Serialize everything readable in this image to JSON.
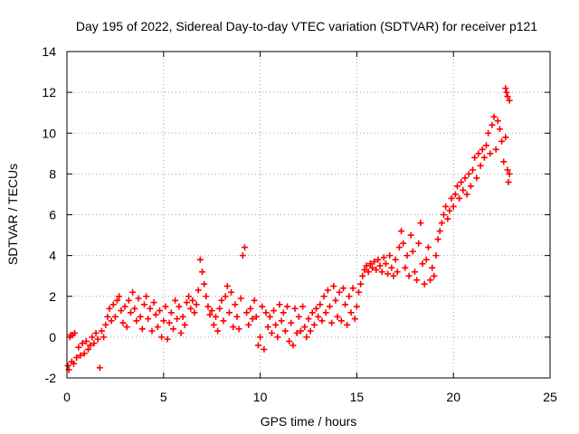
{
  "chart_data": {
    "type": "scatter",
    "title": "Day 195 of 2022, Sidereal Day-to-day VTEC variation (SDTVAR) for receiver p121",
    "xlabel": "GPS time / hours",
    "ylabel": "SDTVAR / TECUs",
    "xlim": [
      0,
      25
    ],
    "ylim": [
      -2,
      14
    ],
    "xticks": [
      0,
      5,
      10,
      15,
      20,
      25
    ],
    "yticks": [
      -2,
      0,
      2,
      4,
      6,
      8,
      10,
      12,
      14
    ],
    "grid": true,
    "marker": "+",
    "color": "#ff0000",
    "series": [
      {
        "name": "SDTVAR",
        "points": [
          [
            0.05,
            -1.4
          ],
          [
            0.1,
            -1.6
          ],
          [
            0.15,
            0.0
          ],
          [
            0.2,
            0.1
          ],
          [
            0.25,
            -1.2
          ],
          [
            0.3,
            0.1
          ],
          [
            0.35,
            -1.3
          ],
          [
            0.4,
            0.2
          ],
          [
            0.5,
            -1.0
          ],
          [
            0.6,
            -0.5
          ],
          [
            0.7,
            -0.9
          ],
          [
            0.8,
            -0.3
          ],
          [
            0.9,
            -0.8
          ],
          [
            1.0,
            -0.2
          ],
          [
            1.1,
            -0.6
          ],
          [
            1.2,
            -0.4
          ],
          [
            1.3,
            0.0
          ],
          [
            1.4,
            -0.3
          ],
          [
            1.5,
            0.2
          ],
          [
            1.6,
            -0.1
          ],
          [
            1.7,
            -1.5
          ],
          [
            1.8,
            0.3
          ],
          [
            1.9,
            0.0
          ],
          [
            2.0,
            0.6
          ],
          [
            2.1,
            1.0
          ],
          [
            2.2,
            1.4
          ],
          [
            2.3,
            0.8
          ],
          [
            2.4,
            1.6
          ],
          [
            2.5,
            1.0
          ],
          [
            2.6,
            1.8
          ],
          [
            2.7,
            2.0
          ],
          [
            2.8,
            1.3
          ],
          [
            2.9,
            0.7
          ],
          [
            3.0,
            1.5
          ],
          [
            3.1,
            0.5
          ],
          [
            3.2,
            1.8
          ],
          [
            3.3,
            1.2
          ],
          [
            3.4,
            2.2
          ],
          [
            3.5,
            1.4
          ],
          [
            3.6,
            0.8
          ],
          [
            3.7,
            1.9
          ],
          [
            3.8,
            1.0
          ],
          [
            3.9,
            0.4
          ],
          [
            4.0,
            1.6
          ],
          [
            4.1,
            2.0
          ],
          [
            4.2,
            0.9
          ],
          [
            4.3,
            1.4
          ],
          [
            4.4,
            0.3
          ],
          [
            4.5,
            1.7
          ],
          [
            4.6,
            1.1
          ],
          [
            4.7,
            0.5
          ],
          [
            4.8,
            1.3
          ],
          [
            4.9,
            0.0
          ],
          [
            5.0,
            0.8
          ],
          [
            5.1,
            1.5
          ],
          [
            5.2,
            -0.1
          ],
          [
            5.3,
            0.7
          ],
          [
            5.4,
            1.2
          ],
          [
            5.5,
            0.4
          ],
          [
            5.6,
            1.8
          ],
          [
            5.7,
            0.9
          ],
          [
            5.8,
            1.5
          ],
          [
            5.9,
            0.2
          ],
          [
            6.0,
            1.0
          ],
          [
            6.1,
            0.6
          ],
          [
            6.2,
            1.7
          ],
          [
            6.3,
            2.0
          ],
          [
            6.4,
            1.4
          ],
          [
            6.5,
            1.8
          ],
          [
            6.6,
            1.2
          ],
          [
            6.7,
            1.6
          ],
          [
            6.8,
            2.3
          ],
          [
            6.9,
            3.8
          ],
          [
            7.0,
            3.2
          ],
          [
            7.1,
            2.6
          ],
          [
            7.2,
            2.0
          ],
          [
            7.3,
            1.5
          ],
          [
            7.4,
            1.1
          ],
          [
            7.5,
            1.3
          ],
          [
            7.6,
            0.6
          ],
          [
            7.7,
            1.0
          ],
          [
            7.8,
            0.3
          ],
          [
            7.9,
            1.4
          ],
          [
            8.0,
            1.8
          ],
          [
            8.1,
            0.8
          ],
          [
            8.2,
            2.0
          ],
          [
            8.3,
            2.5
          ],
          [
            8.4,
            1.2
          ],
          [
            8.5,
            2.2
          ],
          [
            8.6,
            0.5
          ],
          [
            8.7,
            1.6
          ],
          [
            8.8,
            1.0
          ],
          [
            8.9,
            0.4
          ],
          [
            9.0,
            1.9
          ],
          [
            9.1,
            4.0
          ],
          [
            9.2,
            4.4
          ],
          [
            9.3,
            1.2
          ],
          [
            9.4,
            0.6
          ],
          [
            9.5,
            1.4
          ],
          [
            9.6,
            0.9
          ],
          [
            9.7,
            1.8
          ],
          [
            9.8,
            1.0
          ],
          [
            9.9,
            -0.4
          ],
          [
            10.0,
            0.0
          ],
          [
            10.1,
            1.5
          ],
          [
            10.2,
            -0.6
          ],
          [
            10.3,
            1.2
          ],
          [
            10.4,
            0.5
          ],
          [
            10.5,
            1.0
          ],
          [
            10.6,
            0.2
          ],
          [
            10.7,
            1.3
          ],
          [
            10.8,
            0.6
          ],
          [
            10.9,
            0.0
          ],
          [
            11.0,
            1.6
          ],
          [
            11.1,
            0.8
          ],
          [
            11.2,
            1.2
          ],
          [
            11.3,
            0.3
          ],
          [
            11.4,
            1.5
          ],
          [
            11.5,
            -0.2
          ],
          [
            11.6,
            0.7
          ],
          [
            11.7,
            -0.4
          ],
          [
            11.8,
            1.4
          ],
          [
            11.9,
            0.2
          ],
          [
            12.0,
            1.0
          ],
          [
            12.1,
            0.3
          ],
          [
            12.2,
            1.5
          ],
          [
            12.3,
            0.5
          ],
          [
            12.4,
            0.0
          ],
          [
            12.5,
            0.9
          ],
          [
            12.6,
            0.3
          ],
          [
            12.7,
            1.2
          ],
          [
            12.8,
            0.6
          ],
          [
            12.9,
            1.4
          ],
          [
            13.0,
            1.0
          ],
          [
            13.1,
            1.6
          ],
          [
            13.2,
            0.8
          ],
          [
            13.3,
            2.0
          ],
          [
            13.4,
            1.2
          ],
          [
            13.5,
            2.3
          ],
          [
            13.6,
            1.5
          ],
          [
            13.7,
            0.7
          ],
          [
            13.8,
            2.5
          ],
          [
            13.9,
            1.8
          ],
          [
            14.0,
            1.0
          ],
          [
            14.1,
            2.2
          ],
          [
            14.2,
            0.8
          ],
          [
            14.3,
            2.4
          ],
          [
            14.4,
            1.6
          ],
          [
            14.5,
            0.6
          ],
          [
            14.6,
            2.0
          ],
          [
            14.7,
            1.2
          ],
          [
            14.8,
            2.4
          ],
          [
            14.9,
            0.9
          ],
          [
            15.0,
            1.5
          ],
          [
            15.1,
            2.2
          ],
          [
            15.2,
            2.6
          ],
          [
            15.3,
            3.0
          ],
          [
            15.4,
            3.3
          ],
          [
            15.5,
            3.5
          ],
          [
            15.6,
            3.2
          ],
          [
            15.7,
            3.6
          ],
          [
            15.8,
            3.4
          ],
          [
            15.9,
            3.7
          ],
          [
            16.0,
            3.3
          ],
          [
            16.1,
            3.8
          ],
          [
            16.2,
            3.5
          ],
          [
            16.3,
            3.2
          ],
          [
            16.4,
            3.9
          ],
          [
            16.5,
            3.6
          ],
          [
            16.6,
            3.1
          ],
          [
            16.7,
            4.0
          ],
          [
            16.8,
            3.4
          ],
          [
            16.9,
            3.0
          ],
          [
            17.0,
            3.8
          ],
          [
            17.1,
            3.2
          ],
          [
            17.2,
            4.4
          ],
          [
            17.3,
            5.2
          ],
          [
            17.4,
            4.6
          ],
          [
            17.5,
            3.4
          ],
          [
            17.6,
            4.0
          ],
          [
            17.7,
            3.0
          ],
          [
            17.8,
            5.0
          ],
          [
            17.9,
            4.2
          ],
          [
            18.0,
            3.2
          ],
          [
            18.1,
            2.8
          ],
          [
            18.2,
            4.6
          ],
          [
            18.3,
            5.6
          ],
          [
            18.4,
            3.6
          ],
          [
            18.5,
            2.6
          ],
          [
            18.6,
            3.8
          ],
          [
            18.7,
            4.4
          ],
          [
            18.8,
            2.8
          ],
          [
            18.9,
            3.4
          ],
          [
            19.0,
            3.0
          ],
          [
            19.1,
            4.0
          ],
          [
            19.2,
            4.8
          ],
          [
            19.3,
            5.2
          ],
          [
            19.4,
            5.6
          ],
          [
            19.5,
            6.0
          ],
          [
            19.6,
            6.4
          ],
          [
            19.7,
            5.8
          ],
          [
            19.8,
            6.2
          ],
          [
            19.9,
            6.8
          ],
          [
            20.0,
            6.4
          ],
          [
            20.1,
            7.0
          ],
          [
            20.2,
            7.4
          ],
          [
            20.3,
            6.8
          ],
          [
            20.4,
            7.6
          ],
          [
            20.5,
            7.2
          ],
          [
            20.6,
            7.8
          ],
          [
            20.7,
            7.0
          ],
          [
            20.8,
            8.0
          ],
          [
            20.9,
            7.4
          ],
          [
            21.0,
            8.2
          ],
          [
            21.1,
            8.8
          ],
          [
            21.2,
            7.8
          ],
          [
            21.3,
            9.0
          ],
          [
            21.4,
            8.4
          ],
          [
            21.5,
            9.2
          ],
          [
            21.6,
            8.8
          ],
          [
            21.7,
            9.4
          ],
          [
            21.8,
            10.0
          ],
          [
            21.9,
            9.0
          ],
          [
            22.0,
            10.4
          ],
          [
            22.1,
            10.8
          ],
          [
            22.2,
            9.2
          ],
          [
            22.3,
            10.6
          ],
          [
            22.4,
            10.2
          ],
          [
            22.5,
            9.6
          ],
          [
            22.6,
            8.6
          ],
          [
            22.7,
            9.8
          ],
          [
            22.8,
            8.2
          ],
          [
            22.85,
            7.6
          ],
          [
            22.9,
            8.0
          ],
          [
            22.75,
            12.0
          ],
          [
            22.8,
            11.8
          ],
          [
            22.9,
            11.6
          ],
          [
            22.7,
            12.2
          ]
        ]
      }
    ]
  }
}
